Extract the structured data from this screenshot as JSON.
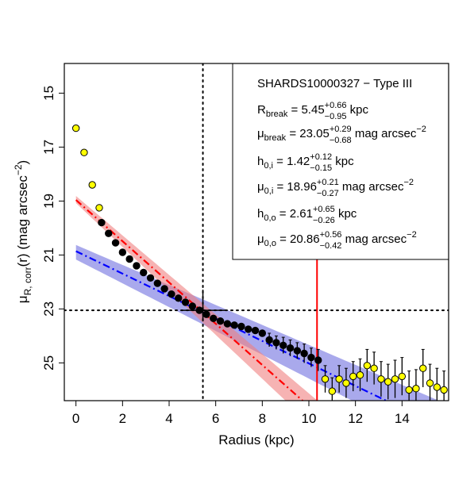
{
  "chart_data": {
    "type": "scatter",
    "title": "",
    "xlabel": "Radius (kpc)",
    "ylabel": {
      "base": "μ",
      "sub": "R, corr",
      "rest": "(r) (mag arcsec",
      "sup": "−2",
      "close": ")"
    },
    "xlim": [
      -0.5,
      16.0
    ],
    "ylim": [
      26.4,
      13.9
    ],
    "y_reversed": true,
    "x_ticks": [
      0,
      2,
      4,
      6,
      8,
      10,
      12,
      14
    ],
    "y_ticks": [
      15,
      17,
      19,
      21,
      23,
      25
    ],
    "x_tick_labels": [
      "0",
      "2",
      "4",
      "6",
      "8",
      "10",
      "12",
      "14"
    ],
    "y_tick_labels": [
      "15",
      "17",
      "19",
      "21",
      "23",
      "25"
    ],
    "grid": false,
    "vline_break": 5.45,
    "hline_break": 23.05,
    "vline_red": 10.35,
    "break_marker": {
      "x": 5.45,
      "y": 23.05
    },
    "colors": {
      "inner_fit": "#ff0000",
      "outer_fit": "#0000ff",
      "inner_band": "#f08080",
      "outer_band": "#7070e0",
      "excluded_points": "#ffff00",
      "vline_red": "#ff0000"
    },
    "inner_fit": {
      "h": 1.42,
      "mu0": 18.96,
      "h_err": [
        0.12,
        0.15
      ],
      "mu0_err": [
        0.21,
        0.27
      ],
      "x_range": [
        0.0,
        10.35
      ]
    },
    "outer_fit": {
      "h": 2.61,
      "mu0": 20.86,
      "h_err": [
        0.65,
        0.26
      ],
      "mu0_err": [
        0.56,
        0.42
      ],
      "x_range": [
        0.0,
        15.8
      ]
    },
    "series": [
      {
        "kind": "fitted",
        "marker": "black",
        "points": [
          [
            1.1,
            19.8,
            0.08
          ],
          [
            1.4,
            20.2,
            0.08
          ],
          [
            1.7,
            20.55,
            0.08
          ],
          [
            2.0,
            20.9,
            0.08
          ],
          [
            2.3,
            21.15,
            0.08
          ],
          [
            2.6,
            21.4,
            0.08
          ],
          [
            2.9,
            21.65,
            0.08
          ],
          [
            3.2,
            21.85,
            0.08
          ],
          [
            3.5,
            22.05,
            0.08
          ],
          [
            3.8,
            22.25,
            0.08
          ],
          [
            4.1,
            22.45,
            0.08
          ],
          [
            4.4,
            22.6,
            0.08
          ],
          [
            4.7,
            22.75,
            0.08
          ],
          [
            5.0,
            22.9,
            0.1
          ],
          [
            5.3,
            23.05,
            0.1
          ],
          [
            5.6,
            23.2,
            0.1
          ],
          [
            5.9,
            23.35,
            0.1
          ],
          [
            6.2,
            23.45,
            0.1
          ],
          [
            6.5,
            23.55,
            0.1
          ],
          [
            6.8,
            23.6,
            0.1
          ],
          [
            7.1,
            23.65,
            0.1
          ],
          [
            7.4,
            23.75,
            0.1
          ],
          [
            7.7,
            23.8,
            0.1
          ],
          [
            8.0,
            23.9,
            0.1
          ],
          [
            8.3,
            24.15,
            0.25
          ],
          [
            8.6,
            24.25,
            0.25
          ],
          [
            8.9,
            24.35,
            0.3
          ],
          [
            9.2,
            24.45,
            0.3
          ],
          [
            9.5,
            24.55,
            0.3
          ],
          [
            9.8,
            24.65,
            0.35
          ],
          [
            10.1,
            24.8,
            0.35
          ],
          [
            10.4,
            24.9,
            0.4
          ]
        ]
      },
      {
        "kind": "excluded",
        "marker": "yellow",
        "points": [
          [
            0.0,
            16.3,
            0.05
          ],
          [
            0.35,
            17.2,
            0.05
          ],
          [
            0.7,
            18.4,
            0.05
          ],
          [
            1.0,
            19.25,
            0.05
          ],
          [
            10.7,
            25.6,
            0.5
          ],
          [
            11.0,
            26.05,
            0.5
          ],
          [
            11.3,
            25.6,
            0.5
          ],
          [
            11.6,
            25.75,
            0.55
          ],
          [
            11.9,
            25.5,
            0.55
          ],
          [
            12.2,
            25.45,
            0.6
          ],
          [
            12.5,
            25.1,
            0.6
          ],
          [
            12.8,
            25.2,
            0.6
          ],
          [
            13.1,
            25.6,
            0.65
          ],
          [
            13.4,
            25.7,
            0.65
          ],
          [
            13.7,
            25.6,
            0.7
          ],
          [
            14.0,
            25.5,
            0.7
          ],
          [
            14.3,
            26.0,
            0.7
          ],
          [
            14.6,
            25.95,
            0.7
          ],
          [
            14.9,
            25.2,
            0.7
          ],
          [
            15.2,
            25.75,
            0.7
          ],
          [
            15.5,
            25.9,
            0.7
          ],
          [
            15.8,
            26.0,
            0.7
          ]
        ]
      }
    ],
    "annotation": {
      "title": "SHARDS10000327  −  Type III",
      "lines": [
        {
          "label_base": "R",
          "label_sub": "break",
          "value": "5.45",
          "plus": "+0.66",
          "minus": "−0.95",
          "unit": "kpc",
          "unit_sup": ""
        },
        {
          "label_base": "μ",
          "label_sub": "break",
          "value": "23.05",
          "plus": "+0.29",
          "minus": "−0.68",
          "unit": "mag arcsec",
          "unit_sup": "−2"
        },
        {
          "label_base": "h",
          "label_sub": "0,i",
          "value": "1.42",
          "plus": "+0.12",
          "minus": "−0.15",
          "unit": "kpc",
          "unit_sup": ""
        },
        {
          "label_base": "μ",
          "label_sub": "0,i",
          "value": "18.96",
          "plus": "+0.21",
          "minus": "−0.27",
          "unit": "mag arcsec",
          "unit_sup": "−2"
        },
        {
          "label_base": "h",
          "label_sub": "0,o",
          "value": "2.61",
          "plus": "+0.65",
          "minus": "−0.26",
          "unit": "kpc",
          "unit_sup": ""
        },
        {
          "label_base": "μ",
          "label_sub": "0,o",
          "value": "20.86",
          "plus": "+0.56",
          "minus": "−0.42",
          "unit": "mag arcsec",
          "unit_sup": "−2"
        }
      ]
    }
  }
}
